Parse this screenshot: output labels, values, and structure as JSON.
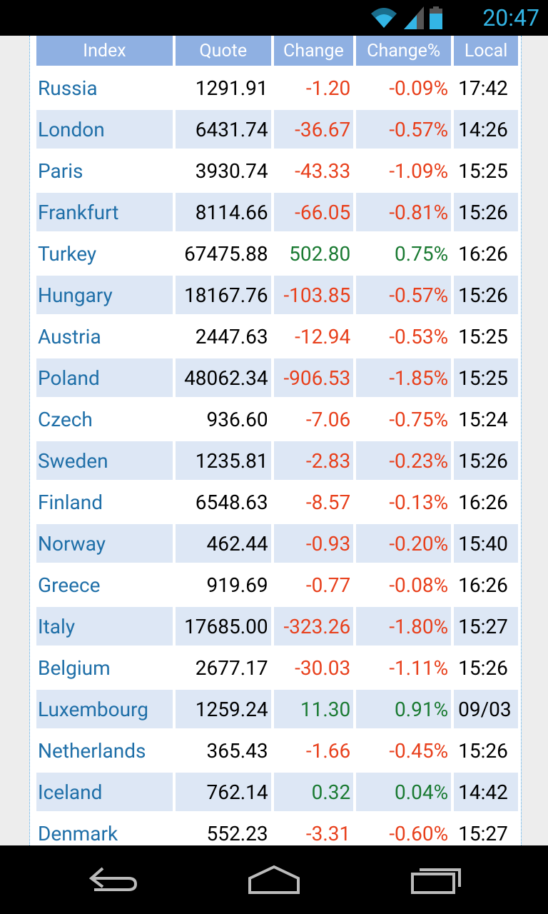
{
  "status_bar": {
    "time": "20:47",
    "icons": [
      "wifi-icon",
      "signal-icon",
      "battery-icon"
    ]
  },
  "table": {
    "headers": {
      "index": "Index",
      "quote": "Quote",
      "change": "Change",
      "change_pct": "Change%",
      "local": "Local"
    },
    "rows": [
      {
        "index": "Russia",
        "quote": "1291.91",
        "change": "-1.20",
        "change_pct": "-0.09%",
        "local": "17:42",
        "dir": "neg"
      },
      {
        "index": "London",
        "quote": "6431.74",
        "change": "-36.67",
        "change_pct": "-0.57%",
        "local": "14:26",
        "dir": "neg"
      },
      {
        "index": "Paris",
        "quote": "3930.74",
        "change": "-43.33",
        "change_pct": "-1.09%",
        "local": "15:25",
        "dir": "neg"
      },
      {
        "index": "Frankfurt",
        "quote": "8114.66",
        "change": "-66.05",
        "change_pct": "-0.81%",
        "local": "15:26",
        "dir": "neg"
      },
      {
        "index": "Turkey",
        "quote": "67475.88",
        "change": "502.80",
        "change_pct": "0.75%",
        "local": "16:26",
        "dir": "pos"
      },
      {
        "index": "Hungary",
        "quote": "18167.76",
        "change": "-103.85",
        "change_pct": "-0.57%",
        "local": "15:26",
        "dir": "neg"
      },
      {
        "index": "Austria",
        "quote": "2447.63",
        "change": "-12.94",
        "change_pct": "-0.53%",
        "local": "15:25",
        "dir": "neg"
      },
      {
        "index": "Poland",
        "quote": "48062.34",
        "change": "-906.53",
        "change_pct": "-1.85%",
        "local": "15:25",
        "dir": "neg"
      },
      {
        "index": "Czech",
        "quote": "936.60",
        "change": "-7.06",
        "change_pct": "-0.75%",
        "local": "15:24",
        "dir": "neg"
      },
      {
        "index": "Sweden",
        "quote": "1235.81",
        "change": "-2.83",
        "change_pct": "-0.23%",
        "local": "15:26",
        "dir": "neg"
      },
      {
        "index": "Finland",
        "quote": "6548.63",
        "change": "-8.57",
        "change_pct": "-0.13%",
        "local": "16:26",
        "dir": "neg"
      },
      {
        "index": "Norway",
        "quote": "462.44",
        "change": "-0.93",
        "change_pct": "-0.20%",
        "local": "15:40",
        "dir": "neg"
      },
      {
        "index": "Greece",
        "quote": "919.69",
        "change": "-0.77",
        "change_pct": "-0.08%",
        "local": "16:26",
        "dir": "neg"
      },
      {
        "index": "Italy",
        "quote": "17685.00",
        "change": "-323.26",
        "change_pct": "-1.80%",
        "local": "15:27",
        "dir": "neg"
      },
      {
        "index": "Belgium",
        "quote": "2677.17",
        "change": "-30.03",
        "change_pct": "-1.11%",
        "local": "15:26",
        "dir": "neg"
      },
      {
        "index": "Luxembourg",
        "quote": "1259.24",
        "change": "11.30",
        "change_pct": "0.91%",
        "local": "09/03",
        "dir": "pos"
      },
      {
        "index": "Netherlands",
        "quote": "365.43",
        "change": "-1.66",
        "change_pct": "-0.45%",
        "local": "15:26",
        "dir": "neg"
      },
      {
        "index": "Iceland",
        "quote": "762.14",
        "change": "0.32",
        "change_pct": "0.04%",
        "local": "14:42",
        "dir": "pos"
      },
      {
        "index": "Denmark",
        "quote": "552.23",
        "change": "-3.31",
        "change_pct": "-0.60%",
        "local": "15:27",
        "dir": "neg"
      }
    ]
  },
  "colors": {
    "header_bg": "#8fb0e2",
    "index_text": "#1f6fa8",
    "negative": "#e8401c",
    "positive": "#1a7a32",
    "alt_row": "#dde7f5",
    "status_accent": "#33b5e5"
  },
  "nav_bar": {
    "icons": [
      "back-icon",
      "home-icon",
      "recent-apps-icon"
    ]
  }
}
